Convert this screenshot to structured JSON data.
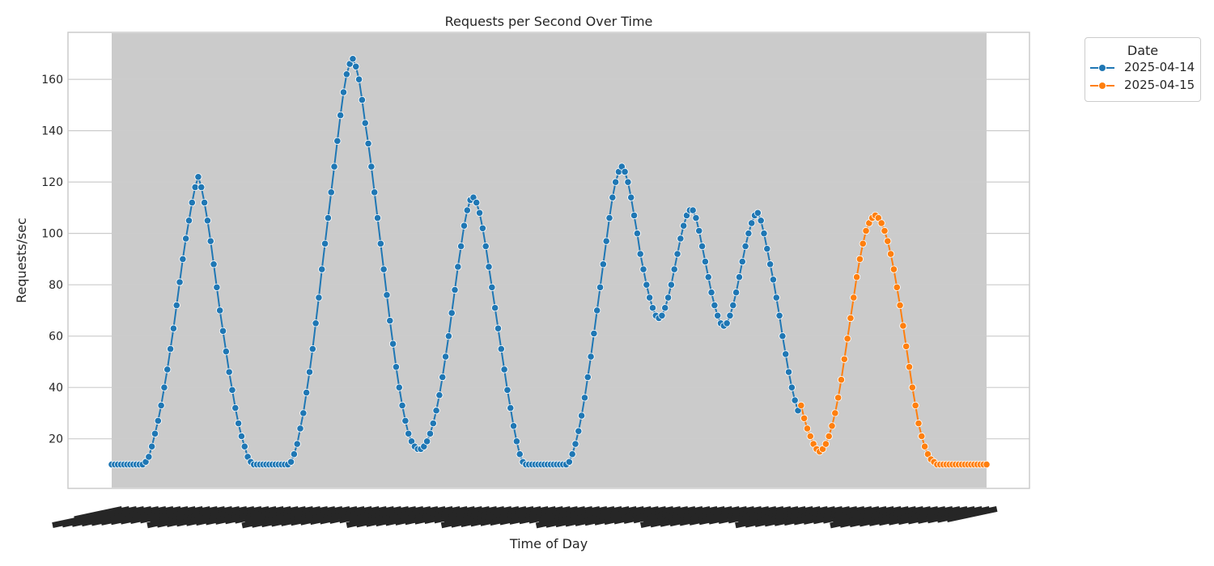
{
  "chart_data": {
    "type": "line",
    "title": "Requests per Second Over Time",
    "xlabel": "Time of Day",
    "ylabel": "Requests/sec",
    "ylim": [
      1,
      178
    ],
    "yticks": [
      20,
      40,
      60,
      80,
      100,
      120,
      140,
      160
    ],
    "grid": true,
    "legend": {
      "title": "Date",
      "placement": "outside-top-right"
    },
    "x_tick_labels": "overlapping, illegible",
    "series": [
      {
        "name": "2025-04-14",
        "color": "#1f77b4",
        "values": [
          10,
          10,
          10,
          10,
          10,
          10,
          10,
          10,
          10,
          10,
          10,
          11,
          13,
          17,
          22,
          27,
          33,
          40,
          47,
          55,
          63,
          72,
          81,
          90,
          98,
          105,
          112,
          118,
          122,
          118,
          112,
          105,
          97,
          88,
          79,
          70,
          62,
          54,
          46,
          39,
          32,
          26,
          21,
          17,
          13,
          11,
          10,
          10,
          10,
          10,
          10,
          10,
          10,
          10,
          10,
          10,
          10,
          10,
          11,
          14,
          18,
          24,
          30,
          38,
          46,
          55,
          65,
          75,
          86,
          96,
          106,
          116,
          126,
          136,
          146,
          155,
          162,
          166,
          168,
          165,
          160,
          152,
          143,
          135,
          126,
          116,
          106,
          96,
          86,
          76,
          66,
          57,
          48,
          40,
          33,
          27,
          22,
          19,
          17,
          16,
          16,
          17,
          19,
          22,
          26,
          31,
          37,
          44,
          52,
          60,
          69,
          78,
          87,
          95,
          103,
          109,
          113,
          114,
          112,
          108,
          102,
          95,
          87,
          79,
          71,
          63,
          55,
          47,
          39,
          32,
          25,
          19,
          14,
          11,
          10,
          10,
          10,
          10,
          10,
          10,
          10,
          10,
          10,
          10,
          10,
          10,
          10,
          10,
          11,
          14,
          18,
          23,
          29,
          36,
          44,
          52,
          61,
          70,
          79,
          88,
          97,
          106,
          114,
          120,
          124,
          126,
          124,
          120,
          114,
          107,
          100,
          92,
          86,
          80,
          75,
          71,
          68,
          67,
          68,
          71,
          75,
          80,
          86,
          92,
          98,
          103,
          107,
          109,
          109,
          106,
          101,
          95,
          89,
          83,
          77,
          72,
          68,
          65,
          64,
          65,
          68,
          72,
          77,
          83,
          89,
          95,
          100,
          104,
          107,
          108,
          105,
          100,
          94,
          88,
          82,
          75,
          68,
          60,
          53,
          46,
          40,
          35,
          31
        ]
      },
      {
        "name": "2025-04-15",
        "color": "#ff7f0e",
        "values": [
          33,
          28,
          24,
          21,
          18,
          16,
          15,
          16,
          18,
          21,
          25,
          30,
          36,
          43,
          51,
          59,
          67,
          75,
          83,
          90,
          96,
          101,
          104,
          106,
          107,
          106,
          104,
          101,
          97,
          92,
          86,
          79,
          72,
          64,
          56,
          48,
          40,
          33,
          26,
          21,
          17,
          14,
          12,
          11,
          10,
          10,
          10,
          10,
          10,
          10,
          10,
          10,
          10,
          10,
          10,
          10,
          10,
          10,
          10,
          10,
          10
        ]
      }
    ]
  }
}
